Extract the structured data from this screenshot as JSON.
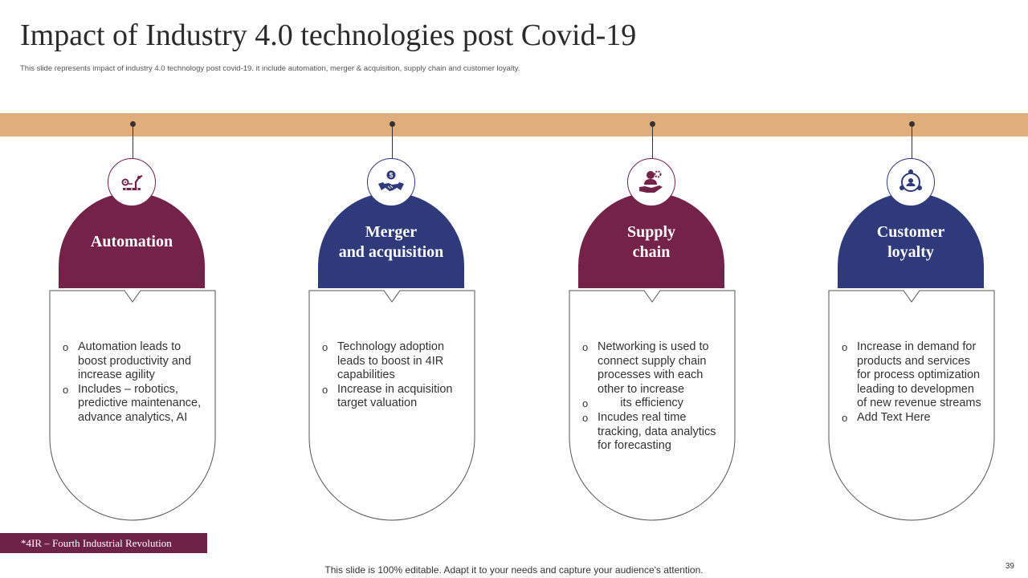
{
  "header": {
    "title": "Impact of Industry 4.0 technologies post Covid-19",
    "subtitle": "This slide represents impact of industry 4.0 technology post covid-19. it include automation,  merger & acquisition, supply chain and customer loyalty."
  },
  "colors": {
    "maroon": "#74224a",
    "navy": "#2e3a7a",
    "band": "#e0ad7c"
  },
  "columns": [
    {
      "title_line1": "Automation",
      "title_line2": "",
      "icon": "automation-robot-arm-icon",
      "color": "#74224a",
      "bullets": [
        "Automation leads to boost productivity and increase agility",
        "Includes – robotics, predictive maintenance, advance analytics, AI"
      ]
    },
    {
      "title_line1": "Merger",
      "title_line2": "and acquisition",
      "icon": "handshake-dollar-icon",
      "color": "#2e3a7a",
      "bullets": [
        "Technology adoption leads to boost in 4IR capabilities",
        "Increase in acquisition target valuation"
      ]
    },
    {
      "title_line1": "Supply",
      "title_line2": "chain",
      "icon": "person-hand-gear-icon",
      "color": "#74224a",
      "bullets": [
        "Networking is used to connect supply chain processes with each other to increase",
        "       its efficiency",
        "Incudes real time tracking, data analytics for forecasting"
      ]
    },
    {
      "title_line1": "Customer",
      "title_line2": "loyalty",
      "icon": "customer-network-icon",
      "color": "#2e3a7a",
      "bullets": [
        "Increase in demand for products and services for process optimization leading to developmen of new revenue streams",
        "Add Text Here"
      ]
    }
  ],
  "footnote": "*4IR – Fourth Industrial Revolution",
  "footer": "This slide is 100% editable. Adapt it to your needs and capture your audience's attention.",
  "page_number": "39"
}
